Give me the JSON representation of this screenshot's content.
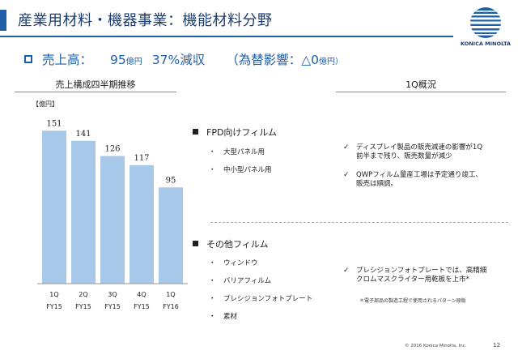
{
  "header": {
    "title": "産業用材料・機器事業：機能材料分野",
    "logo_text": "KONICA MINOLTA"
  },
  "sales": {
    "label": "売上高：",
    "amount": "95",
    "amount_unit": "億円",
    "yoy": "37%減収",
    "fx_label": "（為替影響：",
    "fx_value": "△0",
    "fx_unit": "億円）"
  },
  "left_heading": "売上構成四半期推移",
  "right_heading": "1Q概況",
  "chart_data": {
    "type": "bar",
    "unit_label": "【億円】",
    "categories": [
      {
        "q": "1Q",
        "fy": "FY15"
      },
      {
        "q": "2Q",
        "fy": "FY15"
      },
      {
        "q": "3Q",
        "fy": "FY15"
      },
      {
        "q": "4Q",
        "fy": "FY15"
      },
      {
        "q": "1Q",
        "fy": "FY16"
      }
    ],
    "values": [
      151,
      141,
      126,
      117,
      95
    ],
    "ylim": [
      0,
      160
    ],
    "bar_color": "#a8c8ea",
    "grid": false
  },
  "products": {
    "fpd_title": "FPD向けフィルム",
    "fpd_items": [
      "大型パネル用",
      "中小型パネル用"
    ],
    "other_title": "その他フィルム",
    "other_items": [
      "ウィンドウ",
      "バリアフィルム",
      "プレシジョンフォトプレート",
      "素材"
    ]
  },
  "notes": {
    "note1": [
      "ディスプレイ製品の販売減速の影響が1Q",
      "前半まで残り、販売数量が減少"
    ],
    "note2": [
      "QWPフィルム量産工場は予定通り竣工、",
      "販売は順調。"
    ],
    "note3": [
      "プレシジョンフォトプレートでは、高精細",
      "クロムマスクライター用乾板を上市*"
    ],
    "footnote": "＊電子部品の製造工程で使用されるパターン原版"
  },
  "footer": {
    "copyright": "© 2016 Konica Minolta, Inc.",
    "page": "12"
  }
}
